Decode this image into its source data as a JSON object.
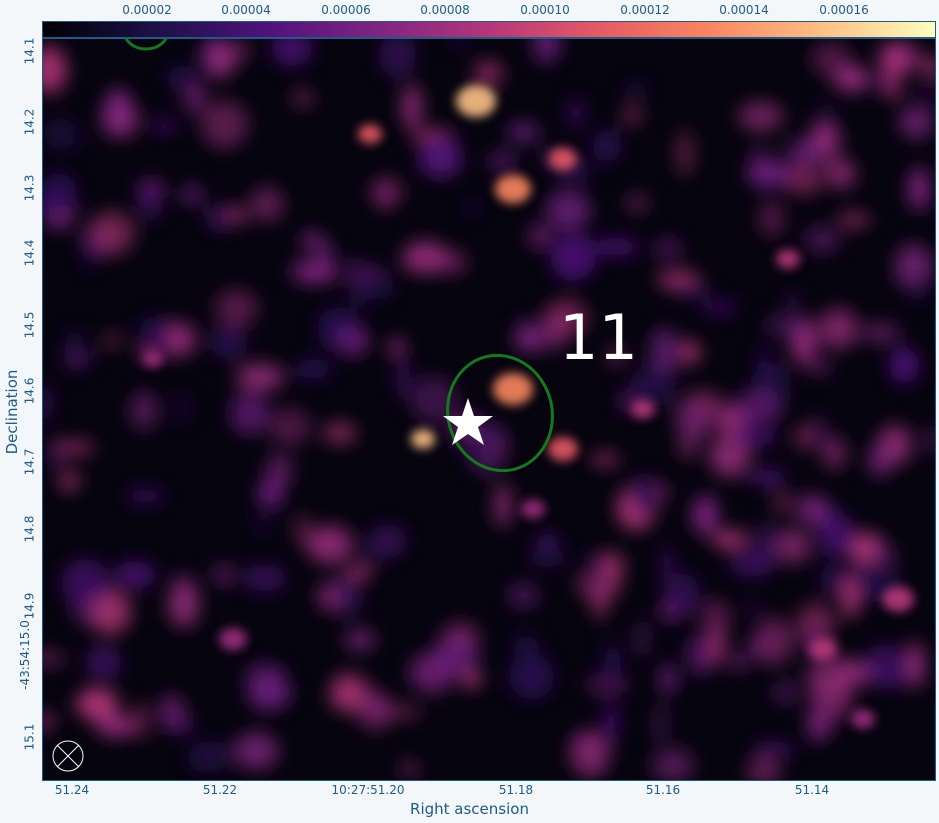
{
  "colorbar": {
    "ticks": [
      "0.00002",
      "0.00004",
      "0.00006",
      "0.00008",
      "0.00010",
      "0.00012",
      "0.00014",
      "0.00016"
    ],
    "colormap": "magma"
  },
  "plot": {
    "annotation_label": "11",
    "marker": "star-icon",
    "ellipse_color": "#137a1c"
  },
  "axes": {
    "x_title": "Right ascension",
    "y_title": "Declination",
    "x_ticks": [
      "51.24",
      "51.22",
      "10:27:51.20",
      "51.18",
      "51.16",
      "51.14"
    ],
    "y_ticks": [
      "14.1",
      "14.2",
      "14.3",
      "14.4",
      "14.5",
      "14.6",
      "14.7",
      "14.8",
      "14.9",
      "-43:54:15.0",
      "15.1"
    ]
  }
}
